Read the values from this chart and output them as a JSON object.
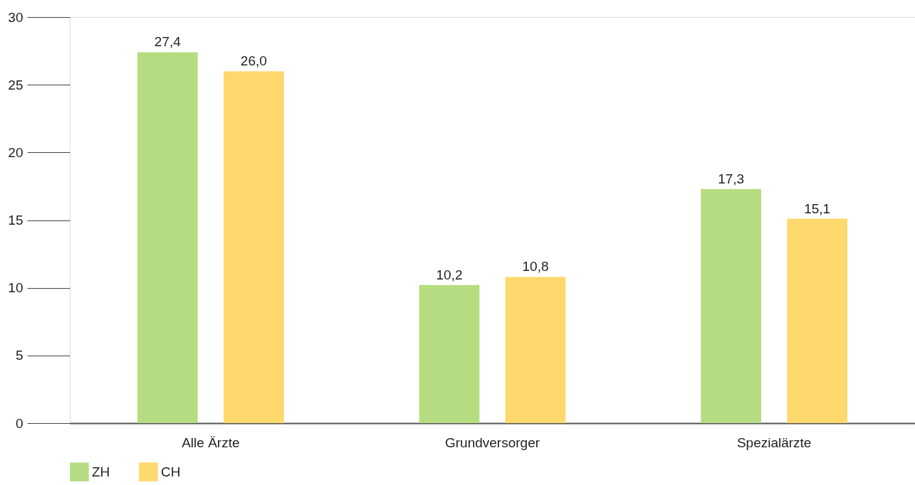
{
  "chart_data": {
    "type": "bar",
    "categories": [
      "Alle Ärzte",
      "Grundversorger",
      "Spezialärzte"
    ],
    "series": [
      {
        "name": "ZH",
        "color": "#b5dc80",
        "values": [
          27.4,
          10.2,
          17.3
        ],
        "value_labels": [
          "27,4",
          "10,2",
          "17,3"
        ]
      },
      {
        "name": "CH",
        "color": "#fdd86c",
        "values": [
          26.0,
          10.8,
          15.1
        ],
        "value_labels": [
          "26,0",
          "10,8",
          "15,1"
        ]
      }
    ],
    "ylim": [
      0,
      30
    ],
    "yticks": [
      0,
      5,
      10,
      15,
      20,
      25,
      30
    ],
    "grid": false,
    "legend": "bottom left"
  }
}
